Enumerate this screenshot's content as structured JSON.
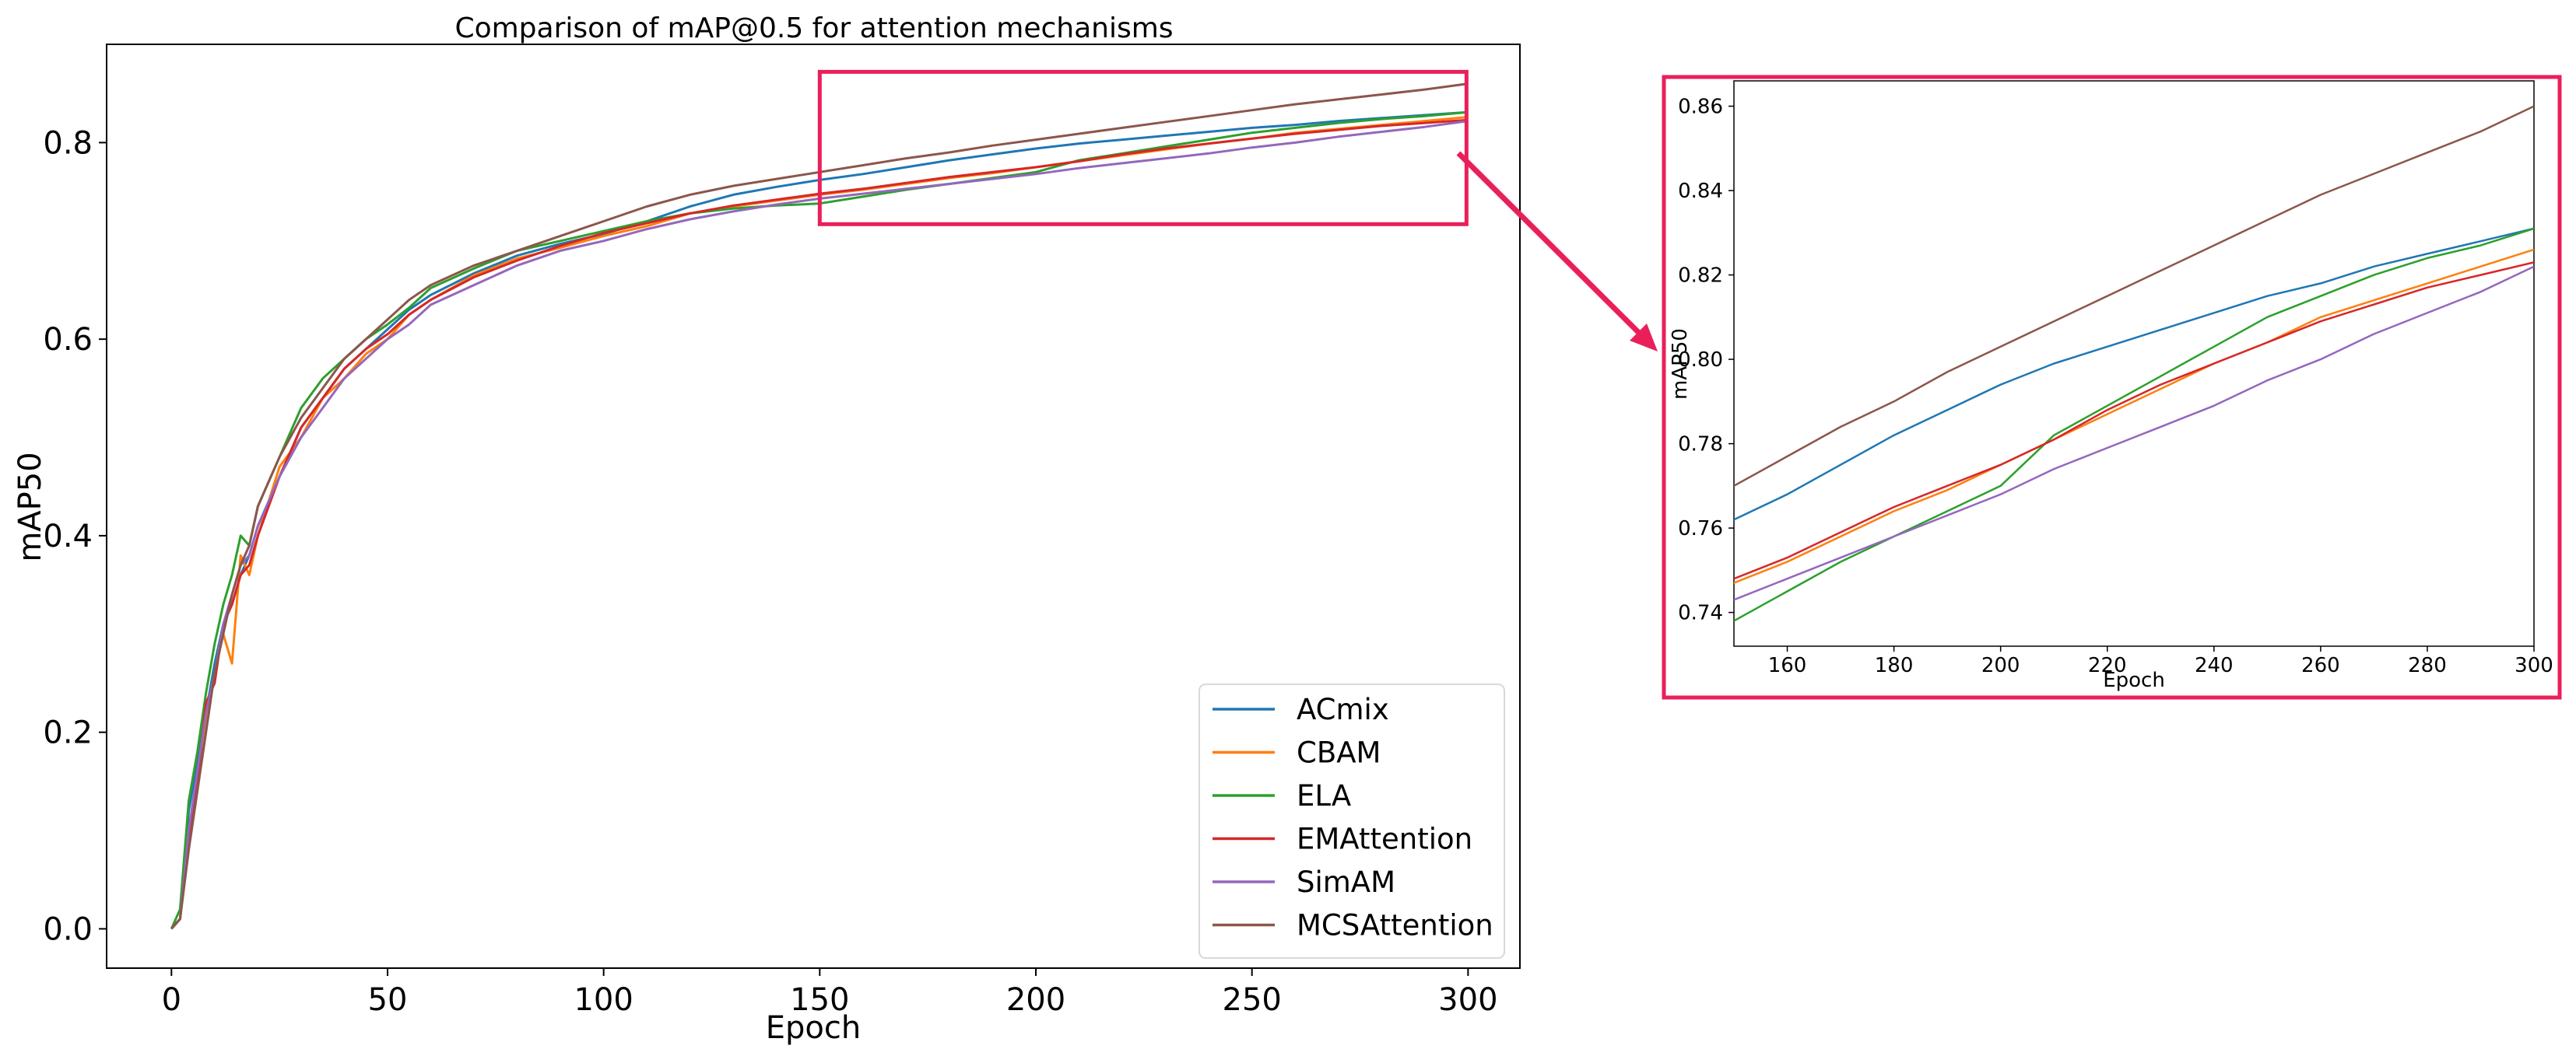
{
  "chart_data": [
    {
      "type": "line",
      "title": "Comparison of mAP@0.5 for attention mechanisms",
      "xlabel": "Epoch",
      "ylabel": "mAP50",
      "xlim": [
        -15,
        312
      ],
      "ylim": [
        -0.04,
        0.9
      ],
      "xticks": [
        0,
        50,
        100,
        150,
        200,
        250,
        300
      ],
      "xtick_labels": [
        "0",
        "50",
        "100",
        "150",
        "200",
        "250",
        "300"
      ],
      "yticks": [
        0.0,
        0.2,
        0.4,
        0.6,
        0.8
      ],
      "ytick_labels": [
        "0.0",
        "0.2",
        "0.4",
        "0.6",
        "0.8"
      ],
      "grid": false,
      "legend_position": "bottom-right",
      "highlight_region": {
        "x": [
          150,
          300
        ],
        "y": [
          0.717,
          0.872
        ]
      },
      "series": [
        {
          "name": "ACmix",
          "color": "#1f77b4",
          "x": [
            0,
            2,
            4,
            6,
            8,
            10,
            12,
            14,
            16,
            18,
            20,
            25,
            30,
            35,
            40,
            45,
            50,
            55,
            60,
            70,
            80,
            90,
            100,
            110,
            120,
            130,
            140,
            150,
            160,
            170,
            180,
            190,
            200,
            210,
            220,
            230,
            240,
            250,
            260,
            270,
            280,
            290,
            300
          ],
          "y": [
            0.0,
            0.01,
            0.12,
            0.17,
            0.22,
            0.27,
            0.31,
            0.33,
            0.36,
            0.38,
            0.41,
            0.46,
            0.51,
            0.54,
            0.57,
            0.59,
            0.61,
            0.63,
            0.645,
            0.667,
            0.685,
            0.697,
            0.707,
            0.72,
            0.735,
            0.747,
            0.755,
            0.762,
            0.768,
            0.775,
            0.782,
            0.788,
            0.794,
            0.799,
            0.803,
            0.807,
            0.811,
            0.815,
            0.818,
            0.822,
            0.825,
            0.828,
            0.831
          ]
        },
        {
          "name": "CBAM",
          "color": "#ff7f0e",
          "x": [
            0,
            2,
            4,
            6,
            8,
            10,
            12,
            14,
            16,
            18,
            20,
            25,
            30,
            35,
            40,
            45,
            50,
            55,
            60,
            70,
            80,
            90,
            100,
            110,
            120,
            130,
            140,
            150,
            160,
            170,
            180,
            190,
            200,
            210,
            220,
            230,
            240,
            250,
            260,
            270,
            280,
            290,
            300
          ],
          "y": [
            0.0,
            0.01,
            0.1,
            0.15,
            0.21,
            0.26,
            0.3,
            0.27,
            0.38,
            0.36,
            0.4,
            0.47,
            0.5,
            0.54,
            0.56,
            0.585,
            0.6,
            0.625,
            0.64,
            0.665,
            0.682,
            0.693,
            0.705,
            0.715,
            0.728,
            0.735,
            0.741,
            0.747,
            0.752,
            0.758,
            0.764,
            0.769,
            0.775,
            0.781,
            0.787,
            0.793,
            0.799,
            0.804,
            0.81,
            0.814,
            0.818,
            0.822,
            0.826
          ]
        },
        {
          "name": "ELA",
          "color": "#2ca02c",
          "x": [
            0,
            2,
            4,
            6,
            8,
            10,
            12,
            14,
            16,
            18,
            20,
            25,
            30,
            35,
            40,
            45,
            50,
            55,
            60,
            70,
            80,
            90,
            100,
            110,
            120,
            130,
            140,
            150,
            160,
            170,
            180,
            190,
            200,
            210,
            220,
            230,
            240,
            250,
            260,
            270,
            280,
            290,
            300
          ],
          "y": [
            0.0,
            0.02,
            0.13,
            0.18,
            0.24,
            0.29,
            0.33,
            0.36,
            0.4,
            0.39,
            0.43,
            0.48,
            0.53,
            0.56,
            0.58,
            0.6,
            0.615,
            0.632,
            0.652,
            0.672,
            0.69,
            0.7,
            0.71,
            0.72,
            0.728,
            0.733,
            0.736,
            0.738,
            0.745,
            0.752,
            0.758,
            0.764,
            0.77,
            0.782,
            0.789,
            0.796,
            0.803,
            0.81,
            0.815,
            0.82,
            0.824,
            0.827,
            0.831
          ]
        },
        {
          "name": "EMAttention",
          "color": "#d62728",
          "x": [
            0,
            2,
            4,
            6,
            8,
            10,
            12,
            14,
            16,
            18,
            20,
            25,
            30,
            35,
            40,
            45,
            50,
            55,
            60,
            70,
            80,
            90,
            100,
            110,
            120,
            130,
            140,
            150,
            160,
            170,
            180,
            190,
            200,
            210,
            220,
            230,
            240,
            250,
            260,
            270,
            280,
            290,
            300
          ],
          "y": [
            0.0,
            0.01,
            0.09,
            0.15,
            0.23,
            0.25,
            0.31,
            0.33,
            0.36,
            0.37,
            0.4,
            0.46,
            0.51,
            0.54,
            0.57,
            0.59,
            0.605,
            0.625,
            0.64,
            0.663,
            0.68,
            0.695,
            0.708,
            0.718,
            0.728,
            0.736,
            0.742,
            0.748,
            0.753,
            0.759,
            0.765,
            0.77,
            0.775,
            0.781,
            0.788,
            0.794,
            0.799,
            0.804,
            0.809,
            0.813,
            0.817,
            0.82,
            0.823
          ]
        },
        {
          "name": "SimAM",
          "color": "#9467bd",
          "x": [
            0,
            2,
            4,
            6,
            8,
            10,
            12,
            14,
            16,
            18,
            20,
            25,
            30,
            35,
            40,
            45,
            50,
            55,
            60,
            70,
            80,
            90,
            100,
            110,
            120,
            130,
            140,
            150,
            160,
            170,
            180,
            190,
            200,
            210,
            220,
            230,
            240,
            250,
            260,
            270,
            280,
            290,
            300
          ],
          "y": [
            0.0,
            0.01,
            0.1,
            0.16,
            0.22,
            0.26,
            0.31,
            0.34,
            0.37,
            0.38,
            0.41,
            0.46,
            0.5,
            0.53,
            0.56,
            0.58,
            0.6,
            0.615,
            0.635,
            0.655,
            0.675,
            0.69,
            0.7,
            0.712,
            0.722,
            0.73,
            0.737,
            0.743,
            0.748,
            0.753,
            0.758,
            0.763,
            0.768,
            0.774,
            0.779,
            0.784,
            0.789,
            0.795,
            0.8,
            0.806,
            0.811,
            0.816,
            0.822
          ]
        },
        {
          "name": "MCSAttention",
          "color": "#8c564b",
          "x": [
            0,
            2,
            4,
            6,
            8,
            10,
            12,
            14,
            16,
            18,
            20,
            25,
            30,
            35,
            40,
            45,
            50,
            55,
            60,
            70,
            80,
            90,
            100,
            110,
            120,
            130,
            140,
            150,
            160,
            170,
            180,
            190,
            200,
            210,
            220,
            230,
            240,
            250,
            260,
            270,
            280,
            290,
            300
          ],
          "y": [
            0.0,
            0.01,
            0.08,
            0.14,
            0.2,
            0.26,
            0.3,
            0.34,
            0.37,
            0.39,
            0.43,
            0.48,
            0.52,
            0.55,
            0.58,
            0.6,
            0.62,
            0.64,
            0.655,
            0.675,
            0.69,
            0.705,
            0.72,
            0.735,
            0.747,
            0.756,
            0.763,
            0.77,
            0.777,
            0.784,
            0.79,
            0.797,
            0.803,
            0.809,
            0.815,
            0.821,
            0.827,
            0.833,
            0.839,
            0.844,
            0.849,
            0.854,
            0.86
          ]
        }
      ]
    },
    {
      "type": "line",
      "title": "",
      "xlabel": "Epoch",
      "ylabel": "mAP50",
      "xlim": [
        150,
        300
      ],
      "ylim": [
        0.732,
        0.866
      ],
      "xticks": [
        160,
        180,
        200,
        220,
        240,
        260,
        280,
        300
      ],
      "xtick_labels": [
        "160",
        "180",
        "200",
        "220",
        "240",
        "260",
        "280",
        "300"
      ],
      "yticks": [
        0.74,
        0.76,
        0.78,
        0.8,
        0.82,
        0.84,
        0.86
      ],
      "ytick_labels": [
        "0.74",
        "0.76",
        "0.78",
        "0.80",
        "0.82",
        "0.84",
        "0.86"
      ],
      "grid": false,
      "legend_position": "none"
    }
  ]
}
